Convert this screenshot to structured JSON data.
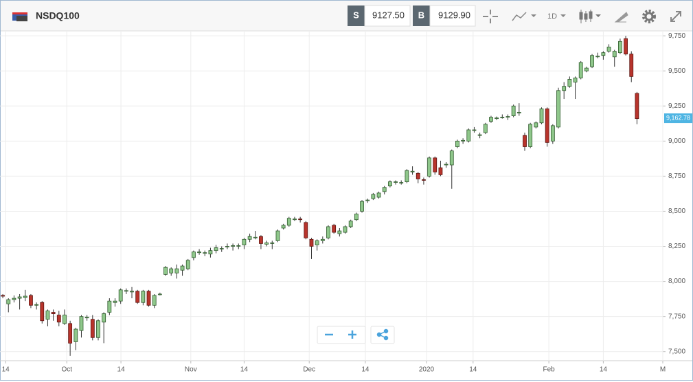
{
  "toolbar": {
    "symbol": "NSDQ100",
    "sell_label": "S",
    "sell_price": "9127.50",
    "buy_label": "B",
    "buy_price": "9129.90",
    "interval": "1D"
  },
  "chart_data": {
    "type": "candlestick",
    "up_color": "#8fc78b",
    "down_color": "#b8342c",
    "grid": true,
    "ylim": [
      7435,
      9780
    ],
    "yticks": [
      {
        "value": 7500,
        "label": "7,500"
      },
      {
        "value": 7750,
        "label": "7,750"
      },
      {
        "value": 8000,
        "label": "8,000"
      },
      {
        "value": 8250,
        "label": "8,250"
      },
      {
        "value": 8500,
        "label": "8,500"
      },
      {
        "value": 8750,
        "label": "8,750"
      },
      {
        "value": 9000,
        "label": "9,000"
      },
      {
        "value": 9250,
        "label": "9,250"
      },
      {
        "value": 9500,
        "label": "9,500"
      },
      {
        "value": 9750,
        "label": "9,750"
      }
    ],
    "xlim": [
      -0.5,
      117.6
    ],
    "xticks": [
      {
        "value": 0.5,
        "label": "14"
      },
      {
        "value": 11.4,
        "label": "Oct"
      },
      {
        "value": 21.05,
        "label": "14"
      },
      {
        "value": 33.5,
        "label": "Nov"
      },
      {
        "value": 43,
        "label": "14"
      },
      {
        "value": 54.6,
        "label": "Dec"
      },
      {
        "value": 64.6,
        "label": "14"
      },
      {
        "value": 75.5,
        "label": "2020"
      },
      {
        "value": 83.8,
        "label": "14"
      },
      {
        "value": 97.3,
        "label": "Feb"
      },
      {
        "value": 107,
        "label": "14"
      },
      {
        "value": 117.6,
        "label": "M"
      }
    ],
    "last_price": {
      "value": 9162.78,
      "label": "9,162.78"
    },
    "candles": [
      [
        7900,
        7910,
        7880,
        7895
      ],
      [
        7840,
        7880,
        7780,
        7870
      ],
      [
        7870,
        7900,
        7850,
        7880
      ],
      [
        7880,
        7910,
        7800,
        7890
      ],
      [
        7885,
        7940,
        7860,
        7895
      ],
      [
        7900,
        7910,
        7810,
        7830
      ],
      [
        7830,
        7850,
        7800,
        7835
      ],
      [
        7850,
        7860,
        7700,
        7720
      ],
      [
        7730,
        7800,
        7680,
        7790
      ],
      [
        7780,
        7800,
        7720,
        7770
      ],
      [
        7760,
        7790,
        7680,
        7710
      ],
      [
        7700,
        7800,
        7690,
        7760
      ],
      [
        7700,
        7720,
        7470,
        7560
      ],
      [
        7570,
        7670,
        7510,
        7660
      ],
      [
        7650,
        7760,
        7600,
        7750
      ],
      [
        7740,
        7760,
        7720,
        7745
      ],
      [
        7730,
        7760,
        7580,
        7600
      ],
      [
        7600,
        7730,
        7580,
        7720
      ],
      [
        7710,
        7780,
        7560,
        7770
      ],
      [
        7780,
        7880,
        7760,
        7860
      ],
      [
        7850,
        7880,
        7820,
        7860
      ],
      [
        7860,
        7950,
        7840,
        7940
      ],
      [
        7930,
        7950,
        7910,
        7935
      ],
      [
        7925,
        7960,
        7880,
        7930
      ],
      [
        7930,
        7940,
        7840,
        7850
      ],
      [
        7850,
        7940,
        7830,
        7930
      ],
      [
        7930,
        7940,
        7820,
        7830
      ],
      [
        7830,
        7910,
        7810,
        7900
      ],
      [
        7905,
        7920,
        7900,
        7910
      ],
      [
        8050,
        8110,
        8040,
        8100
      ],
      [
        8060,
        8100,
        8040,
        8090
      ],
      [
        8060,
        8120,
        8020,
        8090
      ],
      [
        8080,
        8120,
        8040,
        8110
      ],
      [
        8090,
        8160,
        8080,
        8150
      ],
      [
        8170,
        8220,
        8150,
        8210
      ],
      [
        8205,
        8230,
        8190,
        8210
      ],
      [
        8200,
        8220,
        8180,
        8205
      ],
      [
        8195,
        8240,
        8170,
        8220
      ],
      [
        8220,
        8260,
        8200,
        8240
      ],
      [
        8230,
        8250,
        8210,
        8235
      ],
      [
        8245,
        8270,
        8230,
        8250
      ],
      [
        8250,
        8270,
        8220,
        8255
      ],
      [
        8250,
        8270,
        8230,
        8255
      ],
      [
        8260,
        8310,
        8230,
        8300
      ],
      [
        8300,
        8340,
        8280,
        8320
      ],
      [
        8310,
        8360,
        8300,
        8315
      ],
      [
        8320,
        8330,
        8230,
        8270
      ],
      [
        8265,
        8290,
        8250,
        8275
      ],
      [
        8270,
        8290,
        8230,
        8275
      ],
      [
        8290,
        8370,
        8280,
        8360
      ],
      [
        8380,
        8410,
        8370,
        8400
      ],
      [
        8400,
        8460,
        8390,
        8450
      ],
      [
        8440,
        8460,
        8430,
        8445
      ],
      [
        8445,
        8460,
        8420,
        8440
      ],
      [
        8420,
        8430,
        8300,
        8310
      ],
      [
        8300,
        8310,
        8160,
        8250
      ],
      [
        8260,
        8300,
        8220,
        8290
      ],
      [
        8290,
        8320,
        8270,
        8300
      ],
      [
        8310,
        8400,
        8300,
        8390
      ],
      [
        8400,
        8410,
        8340,
        8350
      ],
      [
        8340,
        8380,
        8320,
        8360
      ],
      [
        8350,
        8400,
        8340,
        8390
      ],
      [
        8390,
        8440,
        8380,
        8430
      ],
      [
        8440,
        8490,
        8430,
        8480
      ],
      [
        8500,
        8580,
        8490,
        8570
      ],
      [
        8575,
        8590,
        8560,
        8580
      ],
      [
        8590,
        8630,
        8580,
        8620
      ],
      [
        8600,
        8640,
        8590,
        8630
      ],
      [
        8640,
        8680,
        8620,
        8670
      ],
      [
        8680,
        8720,
        8670,
        8710
      ],
      [
        8705,
        8720,
        8690,
        8710
      ],
      [
        8700,
        8720,
        8690,
        8705
      ],
      [
        8710,
        8800,
        8700,
        8790
      ],
      [
        8780,
        8820,
        8760,
        8785
      ],
      [
        8770,
        8780,
        8700,
        8730
      ],
      [
        8725,
        8740,
        8690,
        8720
      ],
      [
        8750,
        8890,
        8740,
        8880
      ],
      [
        8880,
        8890,
        8760,
        8780
      ],
      [
        8810,
        8860,
        8750,
        8760
      ],
      [
        8830,
        8850,
        8810,
        8835
      ],
      [
        8830,
        8940,
        8660,
        8930
      ],
      [
        8960,
        9010,
        8950,
        9000
      ],
      [
        9000,
        9020,
        8980,
        9005
      ],
      [
        9000,
        9090,
        8990,
        9080
      ],
      [
        9075,
        9100,
        9060,
        9080
      ],
      [
        9040,
        9060,
        9020,
        9045
      ],
      [
        9060,
        9130,
        9050,
        9120
      ],
      [
        9140,
        9180,
        9130,
        9170
      ],
      [
        9160,
        9175,
        9150,
        9165
      ],
      [
        9165,
        9190,
        9160,
        9170
      ],
      [
        9170,
        9190,
        9150,
        9175
      ],
      [
        9180,
        9260,
        9170,
        9250
      ],
      [
        9200,
        9270,
        9180,
        9205
      ],
      [
        9040,
        9060,
        8930,
        8960
      ],
      [
        8960,
        9130,
        8950,
        9120
      ],
      [
        9100,
        9140,
        9090,
        9130
      ],
      [
        9130,
        9240,
        9120,
        9230
      ],
      [
        9230,
        9240,
        8960,
        8990
      ],
      [
        9000,
        9120,
        8980,
        9110
      ],
      [
        9100,
        9380,
        9090,
        9360
      ],
      [
        9360,
        9420,
        9300,
        9390
      ],
      [
        9390,
        9460,
        9380,
        9440
      ],
      [
        9420,
        9460,
        9300,
        9450
      ],
      [
        9450,
        9570,
        9440,
        9560
      ],
      [
        9500,
        9530,
        9490,
        9520
      ],
      [
        9530,
        9620,
        9520,
        9610
      ],
      [
        9600,
        9630,
        9590,
        9605
      ],
      [
        9610,
        9640,
        9580,
        9630
      ],
      [
        9640,
        9690,
        9630,
        9670
      ],
      [
        9600,
        9650,
        9530,
        9640
      ],
      [
        9630,
        9730,
        9620,
        9710
      ],
      [
        9730,
        9750,
        9610,
        9620
      ],
      [
        9620,
        9640,
        9420,
        9460
      ],
      [
        9340,
        9350,
        9120,
        9160
      ]
    ]
  }
}
